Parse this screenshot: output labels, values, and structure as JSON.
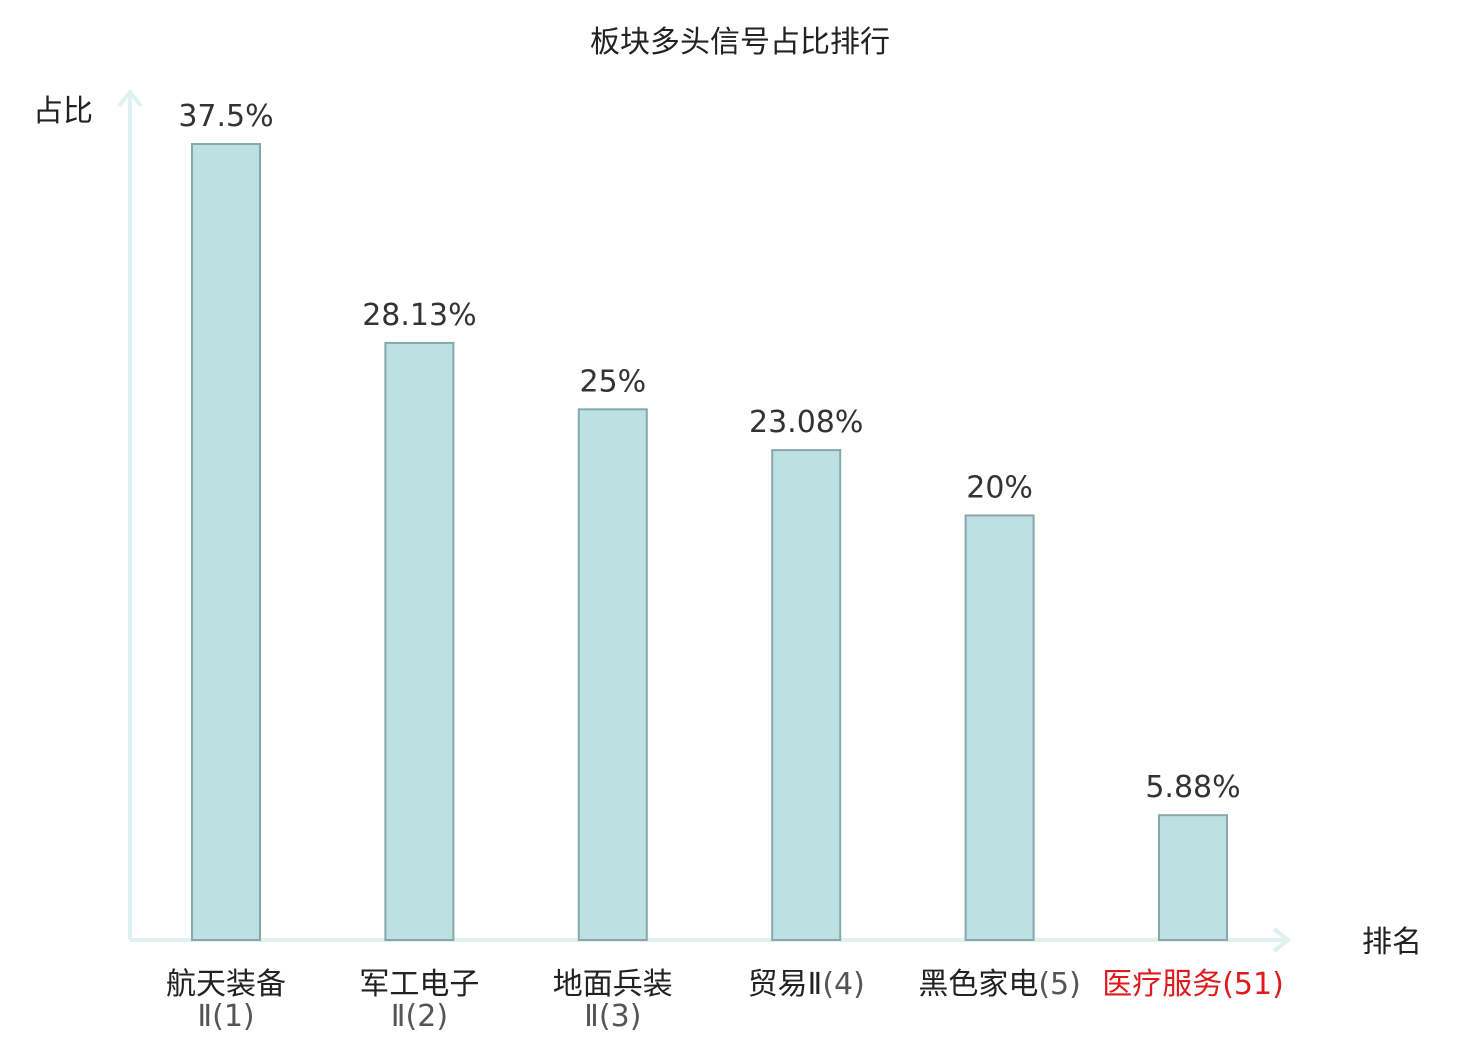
{
  "chart_data": {
    "type": "bar",
    "title": "板块多头信号占比排行",
    "ylabel": "占比",
    "xlabel": "排名",
    "ylim": [
      0,
      37.5
    ],
    "grid": false,
    "categories": [
      {
        "name": "航天装备",
        "rank": "Ⅱ(1)",
        "highlight": false
      },
      {
        "name": "军工电子",
        "rank": "Ⅱ(2)",
        "highlight": false
      },
      {
        "name": "地面兵装",
        "rank": "Ⅱ(3)",
        "highlight": false
      },
      {
        "name": "贸易Ⅱ",
        "rank": "(4)",
        "highlight": false
      },
      {
        "name": "黑色家电",
        "rank": "(5)",
        "highlight": false
      },
      {
        "name": "医疗服务",
        "rank": "(51)",
        "highlight": true
      }
    ],
    "values": [
      37.5,
      28.13,
      25,
      23.08,
      20,
      5.88
    ],
    "value_labels": [
      "37.5%",
      "28.13%",
      "25%",
      "23.08%",
      "20%",
      "5.88%"
    ],
    "colors": {
      "bar_fill": "#bde0e2",
      "bar_stroke": "#86a8aa",
      "axis": "#dff2ef",
      "label_text": "#222222",
      "rank_text": "#555555",
      "highlight": "#e0191e"
    }
  }
}
